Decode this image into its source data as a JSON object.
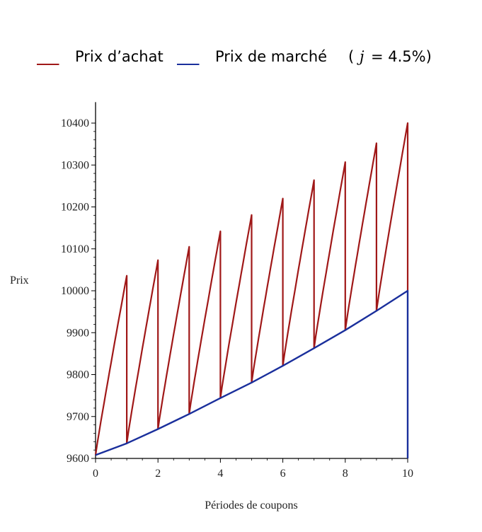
{
  "legend": {
    "purchase_dash": "___",
    "purchase_label": "Prix d’achat",
    "market_dash": "___",
    "market_label": "Prix de marché",
    "rate_open": "(",
    "rate_symbol": "j",
    "rate_rest": "= 4.5%)"
  },
  "colors": {
    "purchase": "#a01818",
    "market": "#1a2f9c",
    "axis": "#000000"
  },
  "chart_data": {
    "type": "line",
    "xlabel": "Périodes de coupons",
    "ylabel": "Prix",
    "xlim": [
      0,
      10
    ],
    "ylim": [
      9600,
      10450
    ],
    "x_ticks": [
      0,
      2,
      4,
      6,
      8,
      10
    ],
    "y_ticks": [
      9600,
      9700,
      9800,
      9900,
      10000,
      10100,
      10200,
      10300,
      10400
    ],
    "grid": false,
    "series": [
      {
        "name": "Prix d’achat",
        "color": "#a01818",
        "style": "sawtooth",
        "periods": [
          0,
          1,
          2,
          3,
          4,
          5,
          6,
          7,
          8,
          9
        ],
        "start_values": [
          9608,
          9636,
          9670,
          9706,
          9744,
          9781,
          9821,
          9863,
          9906,
          9952
        ],
        "peak_values": [
          10036,
          10073,
          10105,
          10142,
          10181,
          10220,
          10264,
          10307,
          10352,
          10400
        ]
      },
      {
        "name": "Prix de marché",
        "color": "#1a2f9c",
        "x": [
          0,
          1,
          2,
          3,
          4,
          5,
          6,
          7,
          8,
          9,
          10
        ],
        "values": [
          9608,
          9636,
          9670,
          9706,
          9744,
          9781,
          9821,
          9863,
          9906,
          9952,
          10000
        ],
        "end_drop_to": 9600
      }
    ]
  }
}
